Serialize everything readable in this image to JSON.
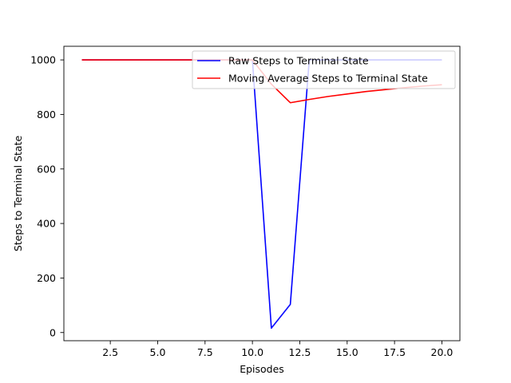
{
  "chart_data": {
    "type": "line",
    "title": "",
    "xlabel": "Episodes",
    "ylabel": "Steps to Terminal State",
    "xlim": [
      0.05,
      20.95
    ],
    "ylim": [
      -30,
      1050
    ],
    "x_ticks": [
      2.5,
      5.0,
      7.5,
      10.0,
      12.5,
      15.0,
      17.5,
      20.0
    ],
    "x_tick_labels": [
      "2.5",
      "5.0",
      "7.5",
      "10.0",
      "12.5",
      "15.0",
      "17.5",
      "20.0"
    ],
    "y_ticks": [
      0,
      200,
      400,
      600,
      800,
      1000
    ],
    "y_tick_labels": [
      "0",
      "200",
      "400",
      "600",
      "800",
      "1000"
    ],
    "grid": false,
    "legend_position": "upper right",
    "x": [
      1,
      2,
      3,
      4,
      5,
      6,
      7,
      8,
      9,
      10,
      11,
      12,
      13,
      14,
      15,
      16,
      17,
      18,
      19,
      20
    ],
    "series": [
      {
        "name": "Raw Steps to Terminal State",
        "color": "#0000ff",
        "values": [
          1000,
          1000,
          1000,
          1000,
          1000,
          1000,
          1000,
          1000,
          1000,
          1000,
          16,
          103,
          1000,
          1000,
          1000,
          1000,
          1000,
          1000,
          1000,
          1000
        ]
      },
      {
        "name": "Moving Average Steps to Terminal State",
        "color": "#ff0000",
        "values": [
          1000,
          1000,
          1000,
          1000,
          1000,
          1000,
          1000,
          1000,
          1000,
          1000,
          911,
          843,
          855,
          866,
          875,
          884,
          891,
          898,
          904,
          909
        ]
      }
    ]
  }
}
